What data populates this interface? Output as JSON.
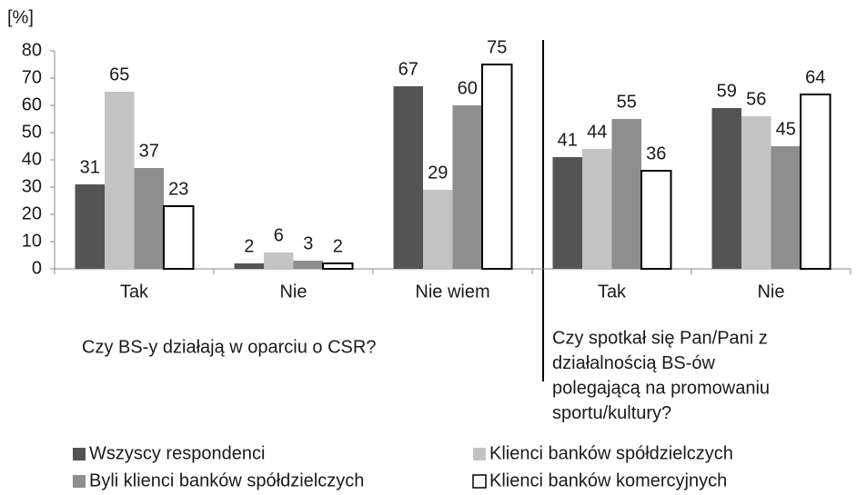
{
  "chart_data": {
    "type": "bar",
    "y_label": "[%]",
    "categories": [
      "Tak",
      "Nie",
      "Nie wiem",
      "Tak",
      "Nie"
    ],
    "groups": [
      {
        "label": [
          "Czy BS-y działają w oparciu o CSR?"
        ]
      },
      {
        "label": [
          "Czy spotkał się Pan/Pani z",
          "działalnością BS-ów",
          "polegającą na promowaniu",
          "sportu/kultury?"
        ]
      }
    ],
    "series": [
      {
        "name": "Wszyscy respondenci",
        "color": "#545454",
        "values": [
          31,
          2,
          67,
          41,
          59
        ]
      },
      {
        "name": "Klienci banków spółdzielczych",
        "color": "#c3c3c3",
        "values": [
          65,
          6,
          29,
          44,
          56
        ]
      },
      {
        "name": "Byli klienci banków spółdzielczych",
        "color": "#8e8e8e",
        "values": [
          37,
          3,
          60,
          55,
          45
        ]
      },
      {
        "name": "Klienci banków komercyjnych",
        "color": "#ffffff",
        "values": [
          23,
          2,
          75,
          36,
          64
        ]
      }
    ],
    "ylim": [
      0,
      80
    ],
    "yticks": [
      0,
      10,
      20,
      30,
      40,
      50,
      60,
      70,
      80
    ],
    "legend": "bottom"
  }
}
